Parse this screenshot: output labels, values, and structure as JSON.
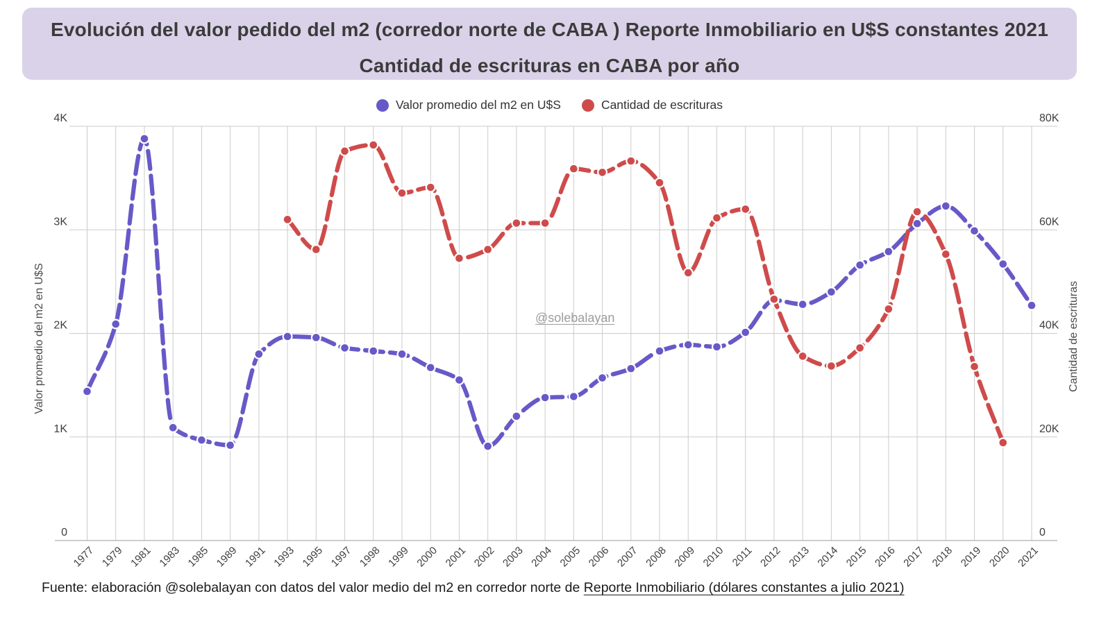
{
  "header": {
    "title_line1": "Evolución del valor pedido del m2 (corredor norte de CABA ) Reporte Inmobiliario en U$S constantes 2021",
    "title_line2": "Cantidad de escrituras en CABA por año"
  },
  "legend": [
    {
      "label": "Valor promedio del m2 en U$S",
      "color": "#6759c8"
    },
    {
      "label": "Cantidad de escrituras",
      "color": "#cf4b4b"
    }
  ],
  "watermark": "@solebalayan",
  "footer": {
    "prefix": "Fuente: elaboración @solebalayan con datos del valor medio del m2 en corredor norte de ",
    "link": "Reporte Inmobiliario (dólares constantes a julio 2021)"
  },
  "colors": {
    "banner_bg": "#dad2e8",
    "title_text": "#3b3b3b",
    "grid": "#cbcbcb",
    "axis_line": "#9b9b9b",
    "tick_text": "#3e3e3e"
  },
  "chart_data": {
    "type": "line",
    "title": "Evolución del valor pedido del m2 (corredor norte de CABA) / Cantidad de escrituras en CABA por año",
    "grid": true,
    "legend_position": "top",
    "categories": [
      "1977",
      "1979",
      "1981",
      "1983",
      "1985",
      "1989",
      "1991",
      "1993",
      "1995",
      "1997",
      "1998",
      "1999",
      "2000",
      "2001",
      "2002",
      "2003",
      "2004",
      "2005",
      "2006",
      "2007",
      "2008",
      "2009",
      "2010",
      "2011",
      "2012",
      "2013",
      "2014",
      "2015",
      "2016",
      "2017",
      "2018",
      "2019",
      "2020",
      "2021"
    ],
    "left_axis": {
      "title": "Valor promedio del m2 en U$S",
      "min": 0,
      "max": 4000,
      "ticks": [
        "0",
        "1K",
        "2K",
        "3K",
        "4K"
      ]
    },
    "right_axis": {
      "title": "Cantidad de escrituras",
      "min": 0,
      "max": 80000,
      "ticks": [
        "0",
        "20K",
        "40K",
        "60K",
        "80K"
      ]
    },
    "series": [
      {
        "name": "Valor promedio del m2 en U$S",
        "axis": "left",
        "color": "#6759c8",
        "values": [
          1440,
          2090,
          3880,
          1090,
          970,
          920,
          1800,
          1970,
          1960,
          1860,
          1830,
          1800,
          1670,
          1550,
          910,
          1200,
          1380,
          1390,
          1570,
          1660,
          1830,
          1890,
          1870,
          2010,
          2320,
          2280,
          2400,
          2660,
          2790,
          3060,
          3230,
          2990,
          2670,
          2270
        ]
      },
      {
        "name": "Cantidad de escrituras",
        "axis": "right",
        "color": "#cf4b4b",
        "values": [
          null,
          null,
          null,
          null,
          null,
          null,
          null,
          62000,
          56200,
          75200,
          76400,
          67100,
          68200,
          54500,
          56200,
          61300,
          61300,
          71800,
          71100,
          73300,
          69100,
          51700,
          62300,
          64000,
          46600,
          35600,
          33700,
          37200,
          44700,
          63500,
          55300,
          33600,
          18900,
          null
        ]
      }
    ]
  }
}
